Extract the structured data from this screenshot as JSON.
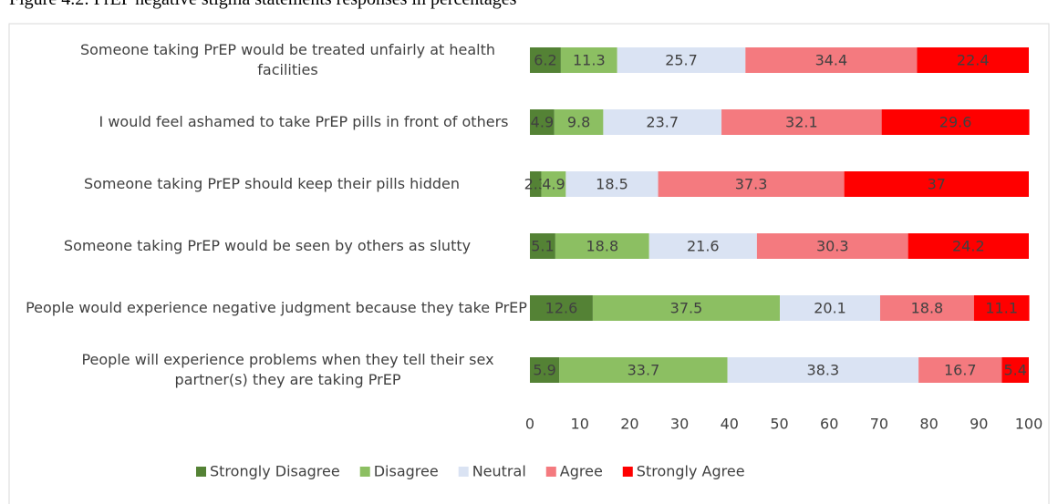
{
  "chart_data": {
    "type": "stacked-bar-horizontal",
    "title": "Figure 4.2: PrEP negative stigma statements responses in percentages",
    "categories": [
      "Someone taking PrEP would be treated unfairly at health facilities",
      "I would feel ashamed to take PrEP pills in front of others",
      "Someone taking PrEP should keep their pills hidden",
      "Someone taking PrEP would be seen by others as slutty",
      "People would experience negative judgment because they take PrEP",
      "People will experience problems when they tell their sex partner(s) they are taking PrEP"
    ],
    "series": [
      {
        "name": "Strongly Disagree",
        "color": "#548235",
        "values": [
          6.2,
          4.9,
          2.3,
          5.1,
          12.6,
          5.9
        ]
      },
      {
        "name": "Disagree",
        "color": "#8cbf62",
        "values": [
          11.3,
          9.8,
          4.9,
          18.8,
          37.5,
          33.7
        ]
      },
      {
        "name": "Neutral",
        "color": "#dae3f3",
        "values": [
          25.7,
          23.7,
          18.5,
          21.6,
          20.1,
          38.3
        ]
      },
      {
        "name": "Agree",
        "color": "#f47a7f",
        "values": [
          34.4,
          32.1,
          37.3,
          30.3,
          18.8,
          16.7
        ]
      },
      {
        "name": "Strongly Agree",
        "color": "#ff0000",
        "values": [
          22.4,
          29.6,
          37,
          24.2,
          11.1,
          5.4
        ]
      }
    ],
    "xlim": [
      0,
      100
    ],
    "xticks": [
      0,
      10,
      20,
      30,
      40,
      50,
      60,
      70,
      80,
      90,
      100
    ]
  }
}
